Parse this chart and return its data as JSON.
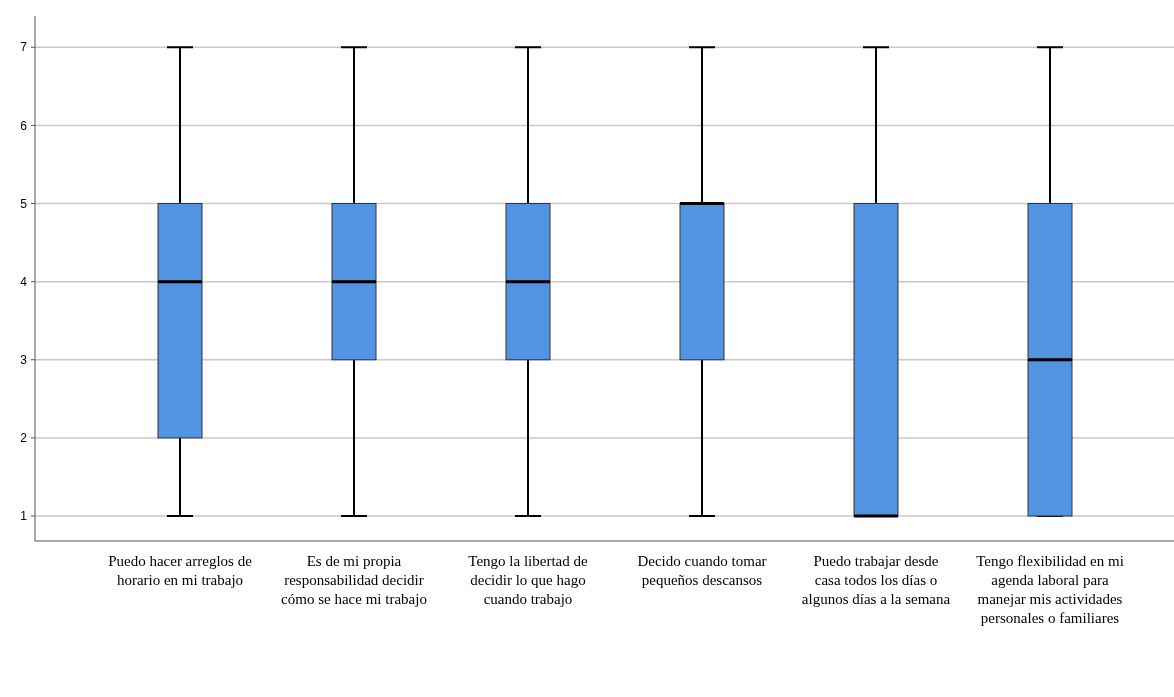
{
  "chart_data": {
    "type": "box",
    "categories": [
      "Puedo hacer arreglos de horario en mi trabajo",
      "Es de mi propia responsabilidad decidir cómo se hace mi trabajo",
      "Tengo la libertad de decidir lo que hago cuando trabajo",
      "Decido cuando tomar pequeños descansos",
      "Puedo trabajar desde casa todos los días o algunos días a la semana",
      "Tengo flexibilidad en mi agenda laboral para manejar mis actividades personales o familiares"
    ],
    "boxes": [
      {
        "low": 1,
        "q1": 2,
        "median": 4,
        "q3": 5,
        "high": 7
      },
      {
        "low": 1,
        "q1": 3,
        "median": 4,
        "q3": 5,
        "high": 7
      },
      {
        "low": 1,
        "q1": 3,
        "median": 4,
        "q3": 5,
        "high": 7
      },
      {
        "low": 1,
        "q1": 3,
        "median": 5,
        "q3": 5,
        "high": 7
      },
      {
        "low": 1,
        "q1": 1,
        "median": 1,
        "q3": 5,
        "high": 7
      },
      {
        "low": 1,
        "q1": 1,
        "median": 3,
        "q3": 5,
        "high": 7
      }
    ],
    "color": "#5294e2",
    "ylim": [
      0.68,
      7.4
    ],
    "yticks": [
      1,
      2,
      3,
      4,
      5,
      6,
      7
    ],
    "grid": "y"
  }
}
